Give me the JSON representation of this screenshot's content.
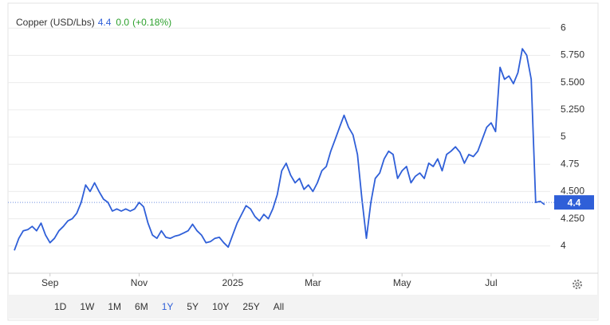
{
  "chart_data": {
    "type": "line",
    "title": "Copper (USD/Lbs)",
    "price": 4.4,
    "change": "0.0",
    "change_pct": "(+0.18%)",
    "categories": [
      null,
      null,
      null,
      null,
      null,
      null,
      null,
      null,
      "Sep",
      null,
      null,
      null,
      null,
      null,
      null,
      null,
      null,
      null,
      null,
      null,
      null,
      null,
      null,
      null,
      null,
      null,
      null,
      null,
      "Nov",
      null,
      null,
      null,
      null,
      null,
      null,
      null,
      null,
      null,
      null,
      null,
      null,
      null,
      null,
      null,
      null,
      null,
      null,
      null,
      null,
      "2025",
      null,
      null,
      null,
      null,
      null,
      null,
      null,
      null,
      null,
      null,
      null,
      null,
      null,
      null,
      null,
      null,
      null,
      "Mar",
      null,
      null,
      null,
      null,
      null,
      null,
      null,
      null,
      null,
      null,
      null,
      null,
      null,
      null,
      null,
      null,
      null,
      null,
      null,
      "May",
      null,
      null,
      null,
      null,
      null,
      null,
      null,
      null,
      null,
      null,
      null,
      null,
      null,
      null,
      null,
      null,
      null,
      null,
      null,
      "Jul",
      null,
      null,
      null,
      null,
      null,
      null,
      null,
      null,
      null,
      null,
      null,
      null
    ],
    "series": [
      {
        "name": "Copper",
        "color": "#2f5fd8",
        "values": [
          3.96,
          4.07,
          4.14,
          4.15,
          4.18,
          4.14,
          4.21,
          4.1,
          4.03,
          4.07,
          4.14,
          4.18,
          4.23,
          4.25,
          4.3,
          4.4,
          4.56,
          4.5,
          4.58,
          4.5,
          4.43,
          4.4,
          4.32,
          4.34,
          4.32,
          4.34,
          4.32,
          4.34,
          4.4,
          4.36,
          4.21,
          4.1,
          4.07,
          4.14,
          4.08,
          4.07,
          4.09,
          4.1,
          4.12,
          4.14,
          4.2,
          4.14,
          4.1,
          4.03,
          4.04,
          4.07,
          4.08,
          4.03,
          3.99,
          4.1,
          4.21,
          4.29,
          4.37,
          4.34,
          4.27,
          4.23,
          4.29,
          4.25,
          4.34,
          4.47,
          4.69,
          4.76,
          4.65,
          4.58,
          4.62,
          4.52,
          4.56,
          4.5,
          4.58,
          4.69,
          4.73,
          4.87,
          4.98,
          5.09,
          5.2,
          5.09,
          5.02,
          4.84,
          4.43,
          4.07,
          4.4,
          4.62,
          4.67,
          4.8,
          4.87,
          4.84,
          4.62,
          4.69,
          4.73,
          4.58,
          4.64,
          4.67,
          4.62,
          4.76,
          4.73,
          4.8,
          4.69,
          4.84,
          4.87,
          4.91,
          4.86,
          4.76,
          4.84,
          4.82,
          4.87,
          4.98,
          5.09,
          5.13,
          5.05,
          5.64,
          5.53,
          5.56,
          5.49,
          5.59,
          5.81,
          5.75,
          5.53,
          4.4,
          4.41,
          4.38
        ]
      }
    ],
    "ylim": [
      3.75,
      6.17
    ],
    "yticks": [
      4,
      {
        "value": 4.25,
        "label": "4.250"
      },
      {
        "value": 4.5,
        "label": "4.500"
      },
      4.75,
      5,
      {
        "value": 5.25,
        "label": "5.250"
      },
      {
        "value": 5.5,
        "label": "5.500"
      },
      {
        "value": 5.75,
        "label": "5.750"
      },
      6
    ],
    "grid": true,
    "ranges": [
      "1D",
      "1W",
      "1M",
      "6M",
      "1Y",
      "5Y",
      "10Y",
      "25Y",
      "All"
    ],
    "active_range": "1Y"
  }
}
